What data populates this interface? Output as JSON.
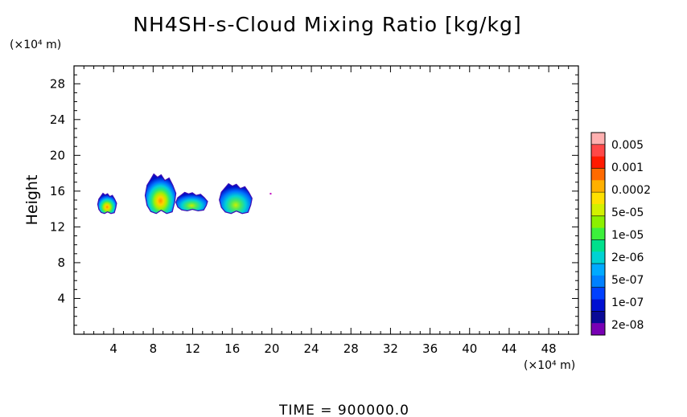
{
  "chart_data": {
    "type": "heatmap",
    "title": "NH4SH-s-Cloud Mixing Ratio [kg/kg]",
    "ylabel": "Height",
    "xlabel": "",
    "x_unit": "(×10⁴ m)",
    "y_unit": "(×10⁴ m)",
    "xlim": [
      0,
      51
    ],
    "ylim": [
      0,
      30
    ],
    "x_ticks": [
      "4",
      "8",
      "12",
      "16",
      "20",
      "24",
      "28",
      "32",
      "36",
      "40",
      "44",
      "48"
    ],
    "y_ticks": [
      "4",
      "8",
      "12",
      "16",
      "20",
      "24",
      "28"
    ],
    "x_tick_values": [
      4,
      8,
      12,
      16,
      20,
      24,
      28,
      32,
      36,
      40,
      44,
      48
    ],
    "y_tick_values": [
      4,
      8,
      12,
      16,
      20,
      24,
      28
    ],
    "colorbar": {
      "labels": [
        "0.005",
        "0.001",
        "0.0002",
        "5e-05",
        "1e-05",
        "2e-06",
        "5e-07",
        "1e-07",
        "2e-08"
      ],
      "colors": [
        "#ffb0b0",
        "#ff4848",
        "#ff1a00",
        "#ff6a00",
        "#ffb000",
        "#ffe000",
        "#d2f000",
        "#8cf000",
        "#3cf03c",
        "#00e08c",
        "#00d2d2",
        "#00aaff",
        "#0080ff",
        "#0040ff",
        "#0010d2",
        "#0a0a96",
        "#7800b4"
      ]
    },
    "cloud_regions": [
      {
        "x_range": [
          2.4,
          4.3
        ],
        "y_range": [
          13.5,
          15.8
        ],
        "max_level": "0.0002"
      },
      {
        "x_range": [
          7.2,
          10.3
        ],
        "y_range": [
          13.5,
          18.0
        ],
        "max_level": "0.0002"
      },
      {
        "x_range": [
          10.3,
          13.5
        ],
        "y_range": [
          13.8,
          15.9
        ],
        "max_level": "5e-05"
      },
      {
        "x_range": [
          14.7,
          18.0
        ],
        "y_range": [
          13.5,
          16.9
        ],
        "max_level": "5e-05"
      },
      {
        "x_range": [
          19.8,
          20.0
        ],
        "y_range": [
          15.6,
          15.8
        ],
        "max_level": "2e-08"
      }
    ],
    "grid": false,
    "legend": "right"
  },
  "footer": {
    "time_label": "TIME = 900000.0"
  }
}
